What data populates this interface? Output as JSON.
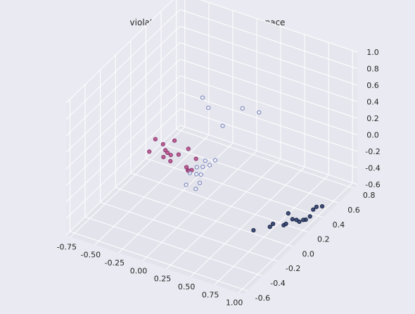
{
  "chart_data": {
    "type": "scatter",
    "title": "violation distribution over PCA space",
    "x_ticks": [
      "-0.75",
      "-0.50",
      "-0.25",
      "0.00",
      "0.25",
      "0.50",
      "0.75",
      "1.00"
    ],
    "y_ticks": [
      "-0.6",
      "-0.4",
      "-0.2",
      "0.0",
      "0.2",
      "0.4",
      "0.6",
      "0.8"
    ],
    "z_ticks": [
      "-0.6",
      "-0.4",
      "-0.2",
      "0.0",
      "0.2",
      "0.4",
      "0.6",
      "0.8",
      "1.0"
    ],
    "xlim": [
      -0.8,
      1.05
    ],
    "ylim": [
      -0.65,
      0.85
    ],
    "zlim": [
      -0.6,
      1.0
    ],
    "grid": true,
    "background": "#eaeaf2",
    "series": [
      {
        "marker": "filled",
        "color": "#b84f8e",
        "edge": "#8a3a6e",
        "points": [
          [
            -0.78,
            0.5,
            -0.45
          ],
          [
            -0.78,
            0.42,
            -0.53
          ],
          [
            -0.7,
            0.5,
            -0.48
          ],
          [
            -0.66,
            0.48,
            -0.52
          ],
          [
            -0.64,
            0.43,
            -0.55
          ],
          [
            -0.63,
            0.47,
            -0.53
          ],
          [
            -0.62,
            0.55,
            -0.45
          ],
          [
            -0.58,
            0.45,
            -0.52
          ],
          [
            -0.56,
            0.42,
            -0.56
          ],
          [
            -0.53,
            0.49,
            -0.53
          ],
          [
            -0.46,
            0.53,
            -0.47
          ],
          [
            -0.4,
            0.43,
            -0.58
          ],
          [
            -0.37,
            0.41,
            -0.59
          ],
          [
            -0.35,
            0.4,
            -0.58
          ],
          [
            -0.33,
            0.41,
            -0.57
          ],
          [
            -0.34,
            0.48,
            -0.5
          ]
        ]
      },
      {
        "marker": "hollow",
        "color": "#7583ba",
        "points": [
          [
            -0.34,
            0.4,
            -0.6
          ],
          [
            -0.28,
            0.41,
            -0.6
          ],
          [
            -0.3,
            0.44,
            -0.55
          ],
          [
            -0.24,
            0.42,
            -0.6
          ],
          [
            -0.23,
            0.43,
            -0.51
          ],
          [
            -0.22,
            0.45,
            -0.45
          ],
          [
            -0.3,
            0.3,
            -0.64
          ],
          [
            -0.19,
            0.34,
            -0.61
          ],
          [
            -0.2,
            0.3,
            -0.65
          ],
          [
            -0.15,
            0.42,
            -0.45
          ],
          [
            -0.1,
            0.43,
            -0.38
          ],
          [
            -0.05,
            0.2,
            0.6
          ],
          [
            0.05,
            0.15,
            0.56
          ],
          [
            0.28,
            0.31,
            0.5
          ],
          [
            0.16,
            0.2,
            0.34
          ],
          [
            0.42,
            0.35,
            0.47
          ]
        ]
      },
      {
        "marker": "filled",
        "color": "#2e3f6b",
        "edge": "#1b2647",
        "points": [
          [
            0.68,
            -0.05,
            -0.5
          ],
          [
            0.78,
            0.04,
            -0.5
          ],
          [
            0.82,
            0.03,
            -0.44
          ],
          [
            0.86,
            0.12,
            -0.52
          ],
          [
            0.9,
            0.1,
            -0.47
          ],
          [
            0.92,
            0.16,
            -0.46
          ],
          [
            0.86,
            0.18,
            -0.43
          ],
          [
            0.93,
            0.2,
            -0.5
          ],
          [
            0.98,
            0.26,
            -0.53
          ],
          [
            0.96,
            0.2,
            -0.51
          ],
          [
            0.97,
            0.24,
            -0.52
          ],
          [
            1.0,
            0.29,
            -0.51
          ],
          [
            1.01,
            0.32,
            -0.45
          ],
          [
            1.02,
            0.35,
            -0.44
          ],
          [
            1.04,
            0.4,
            -0.47
          ]
        ]
      }
    ]
  }
}
